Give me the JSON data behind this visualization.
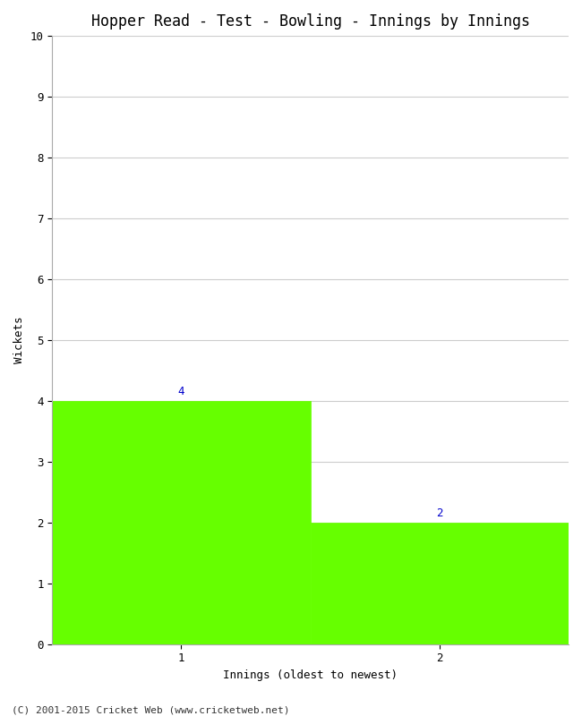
{
  "title": "Hopper Read - Test - Bowling - Innings by Innings",
  "xlabel": "Innings (oldest to newest)",
  "ylabel": "Wickets",
  "categories": [
    "1",
    "2"
  ],
  "values": [
    4,
    2
  ],
  "bar_color": "#66ff00",
  "bar_edge_color": "#66ff00",
  "ylim": [
    0,
    10
  ],
  "yticks": [
    0,
    1,
    2,
    3,
    4,
    5,
    6,
    7,
    8,
    9,
    10
  ],
  "background_color": "#ffffff",
  "grid_color": "#cccccc",
  "annotation_color": "#0000cc",
  "annotation_fontsize": 9,
  "title_fontsize": 12,
  "ylabel_fontsize": 9,
  "xlabel_fontsize": 9,
  "tick_fontsize": 9,
  "footer_text": "(C) 2001-2015 Cricket Web (www.cricketweb.net)",
  "footer_fontsize": 8,
  "bar_width": 1.0,
  "xlim": [
    0,
    2
  ]
}
